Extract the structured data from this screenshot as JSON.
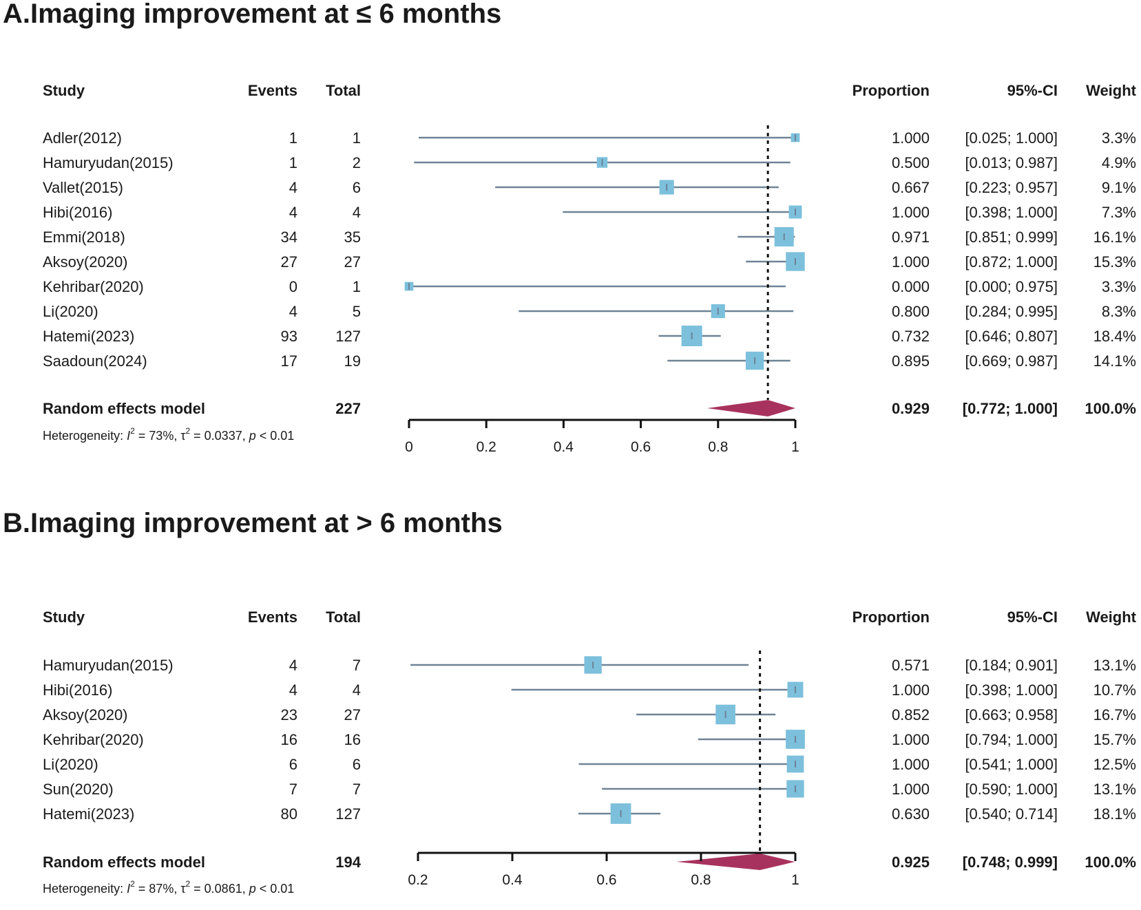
{
  "chart_data": [
    {
      "type": "forest",
      "panel_title": "A.Imaging improvement at ≤ 6 months",
      "columns": {
        "study": "Study",
        "events": "Events",
        "total": "Total",
        "proportion": "Proportion",
        "ci": "95%-CI",
        "weight": "Weight"
      },
      "xlim": [
        0,
        1
      ],
      "ticks": [
        "0",
        "0.2",
        "0.4",
        "0.6",
        "0.8",
        "1"
      ],
      "tick_values": [
        0,
        0.2,
        0.4,
        0.6,
        0.8,
        1
      ],
      "studies": [
        {
          "study": "Adler(2012)",
          "events": "1",
          "total": "1",
          "proportion": "1.000",
          "ci": "[0.025; 1.000]",
          "weight": "3.3%",
          "est": 1.0,
          "lower": 0.025,
          "upper": 1.0,
          "w": 3.3
        },
        {
          "study": "Hamuryudan(2015)",
          "events": "1",
          "total": "2",
          "proportion": "0.500",
          "ci": "[0.013; 0.987]",
          "weight": "4.9%",
          "est": 0.5,
          "lower": 0.013,
          "upper": 0.987,
          "w": 4.9
        },
        {
          "study": "Vallet(2015)",
          "events": "4",
          "total": "6",
          "proportion": "0.667",
          "ci": "[0.223; 0.957]",
          "weight": "9.1%",
          "est": 0.667,
          "lower": 0.223,
          "upper": 0.957,
          "w": 9.1
        },
        {
          "study": "Hibi(2016)",
          "events": "4",
          "total": "4",
          "proportion": "1.000",
          "ci": "[0.398; 1.000]",
          "weight": "7.3%",
          "est": 1.0,
          "lower": 0.398,
          "upper": 1.0,
          "w": 7.3
        },
        {
          "study": "Emmi(2018)",
          "events": "34",
          "total": "35",
          "proportion": "0.971",
          "ci": "[0.851; 0.999]",
          "weight": "16.1%",
          "est": 0.971,
          "lower": 0.851,
          "upper": 0.999,
          "w": 16.1
        },
        {
          "study": "Aksoy(2020)",
          "events": "27",
          "total": "27",
          "proportion": "1.000",
          "ci": "[0.872; 1.000]",
          "weight": "15.3%",
          "est": 1.0,
          "lower": 0.872,
          "upper": 1.0,
          "w": 15.3
        },
        {
          "study": "Kehribar(2020)",
          "events": "0",
          "total": "1",
          "proportion": "0.000",
          "ci": "[0.000; 0.975]",
          "weight": "3.3%",
          "est": 0.0,
          "lower": 0.0,
          "upper": 0.975,
          "w": 3.3
        },
        {
          "study": "Li(2020)",
          "events": "4",
          "total": "5",
          "proportion": "0.800",
          "ci": "[0.284; 0.995]",
          "weight": "8.3%",
          "est": 0.8,
          "lower": 0.284,
          "upper": 0.995,
          "w": 8.3
        },
        {
          "study": "Hatemi(2023)",
          "events": "93",
          "total": "127",
          "proportion": "0.732",
          "ci": "[0.646; 0.807]",
          "weight": "18.4%",
          "est": 0.732,
          "lower": 0.646,
          "upper": 0.807,
          "w": 18.4
        },
        {
          "study": "Saadoun(2024)",
          "events": "17",
          "total": "19",
          "proportion": "0.895",
          "ci": "[0.669; 0.987]",
          "weight": "14.1%",
          "est": 0.895,
          "lower": 0.669,
          "upper": 0.987,
          "w": 14.1
        }
      ],
      "pooled": {
        "label": "Random effects model",
        "total": "227",
        "proportion": "0.929",
        "ci": "[0.772; 1.000]",
        "weight": "100.0%",
        "est": 0.929,
        "lower": 0.772,
        "upper": 1.0
      },
      "heterogeneity": {
        "label": "Heterogeneity: ",
        "i2_value": " = 73%, ",
        "tau2_value": " = 0.0337, ",
        "p_value": " < 0.01"
      },
      "colors": {
        "box": "#7cc0dc",
        "ci_line": "#6e8396",
        "diamond": "#a8325e",
        "reference": "#111111"
      }
    },
    {
      "type": "forest",
      "panel_title": "B.Imaging improvement at > 6 months",
      "columns": {
        "study": "Study",
        "events": "Events",
        "total": "Total",
        "proportion": "Proportion",
        "ci": "95%-CI",
        "weight": "Weight"
      },
      "xlim": [
        0.2,
        1
      ],
      "ticks": [
        "0.2",
        "0.4",
        "0.6",
        "0.8",
        "1"
      ],
      "tick_values": [
        0.2,
        0.4,
        0.6,
        0.8,
        1
      ],
      "studies": [
        {
          "study": "Hamuryudan(2015)",
          "events": "4",
          "total": "7",
          "proportion": "0.571",
          "ci": "[0.184; 0.901]",
          "weight": "13.1%",
          "est": 0.571,
          "lower": 0.184,
          "upper": 0.901,
          "w": 13.1
        },
        {
          "study": "Hibi(2016)",
          "events": "4",
          "total": "4",
          "proportion": "1.000",
          "ci": "[0.398; 1.000]",
          "weight": "10.7%",
          "est": 1.0,
          "lower": 0.398,
          "upper": 1.0,
          "w": 10.7
        },
        {
          "study": "Aksoy(2020)",
          "events": "23",
          "total": "27",
          "proportion": "0.852",
          "ci": "[0.663; 0.958]",
          "weight": "16.7%",
          "est": 0.852,
          "lower": 0.663,
          "upper": 0.958,
          "w": 16.7
        },
        {
          "study": "Kehribar(2020)",
          "events": "16",
          "total": "16",
          "proportion": "1.000",
          "ci": "[0.794; 1.000]",
          "weight": "15.7%",
          "est": 1.0,
          "lower": 0.794,
          "upper": 1.0,
          "w": 15.7
        },
        {
          "study": "Li(2020)",
          "events": "6",
          "total": "6",
          "proportion": "1.000",
          "ci": "[0.541; 1.000]",
          "weight": "12.5%",
          "est": 1.0,
          "lower": 0.541,
          "upper": 1.0,
          "w": 12.5
        },
        {
          "study": "Sun(2020)",
          "events": "7",
          "total": "7",
          "proportion": "1.000",
          "ci": "[0.590; 1.000]",
          "weight": "13.1%",
          "est": 1.0,
          "lower": 0.59,
          "upper": 1.0,
          "w": 13.1
        },
        {
          "study": "Hatemi(2023)",
          "events": "80",
          "total": "127",
          "proportion": "0.630",
          "ci": "[0.540; 0.714]",
          "weight": "18.1%",
          "est": 0.63,
          "lower": 0.54,
          "upper": 0.714,
          "w": 18.1
        }
      ],
      "pooled": {
        "label": "Random effects model",
        "total": "194",
        "proportion": "0.925",
        "ci": "[0.748; 0.999]",
        "weight": "100.0%",
        "est": 0.925,
        "lower": 0.748,
        "upper": 0.999
      },
      "heterogeneity": {
        "label": "Heterogeneity: ",
        "i2_value": " = 87%, ",
        "tau2_value": " = 0.0861, ",
        "p_value": " < 0.01"
      },
      "colors": {
        "box": "#7cc0dc",
        "ci_line": "#6e8396",
        "diamond": "#a8325e",
        "reference": "#111111"
      }
    }
  ]
}
